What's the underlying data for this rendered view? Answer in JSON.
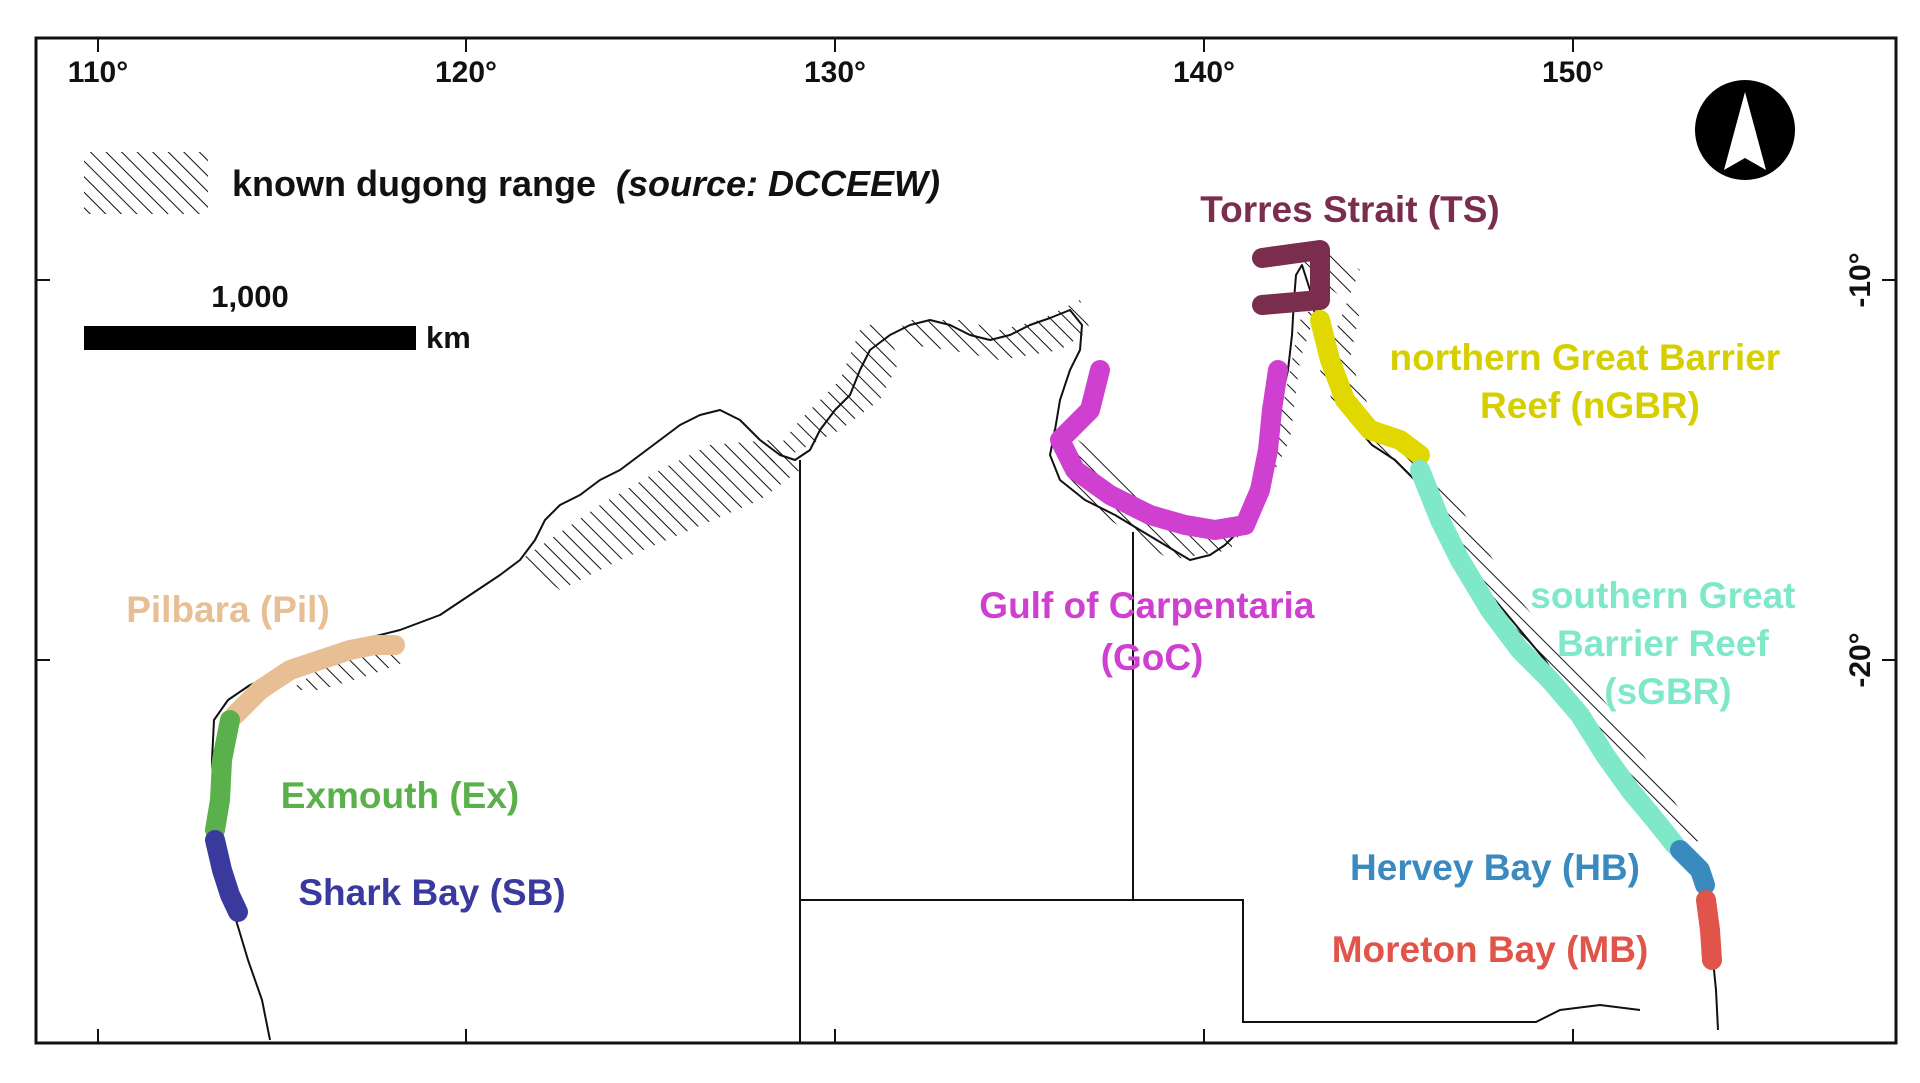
{
  "axes": {
    "longitude_ticks": [
      "110°",
      "120°",
      "130°",
      "140°",
      "150°"
    ],
    "latitude_ticks": [
      "-10°",
      "-20°"
    ]
  },
  "legend": {
    "label": "known dugong range",
    "source": "(source: DCCEEW)"
  },
  "scale_bar": {
    "value": "1,000",
    "unit": "km"
  },
  "north_arrow": {
    "icon": "north-arrow-icon"
  },
  "regions": [
    {
      "id": "ts",
      "lines": [
        "Torres Strait (TS)"
      ],
      "color": "#7b2d4e"
    },
    {
      "id": "ngbr",
      "lines": [
        "northern Great Barrier",
        "Reef (nGBR)"
      ],
      "color": "#e0d800"
    },
    {
      "id": "sgbr",
      "lines": [
        "southern Great",
        "Barrier Reef",
        "(sGBR)"
      ],
      "color": "#7ee8c8"
    },
    {
      "id": "goc",
      "lines": [
        "Gulf of Carpentaria",
        "(GoC)"
      ],
      "color": "#d040d0"
    },
    {
      "id": "pil",
      "lines": [
        "Pilbara (Pil)"
      ],
      "color": "#e8bf95"
    },
    {
      "id": "ex",
      "lines": [
        "Exmouth (Ex)"
      ],
      "color": "#5ab04a"
    },
    {
      "id": "sb",
      "lines": [
        "Shark Bay (SB)"
      ],
      "color": "#3a3a9e"
    },
    {
      "id": "hb",
      "lines": [
        "Hervey Bay (HB)"
      ],
      "color": "#3a8abf"
    },
    {
      "id": "mb",
      "lines": [
        "Moreton Bay (MB)"
      ],
      "color": "#e0544a"
    }
  ]
}
